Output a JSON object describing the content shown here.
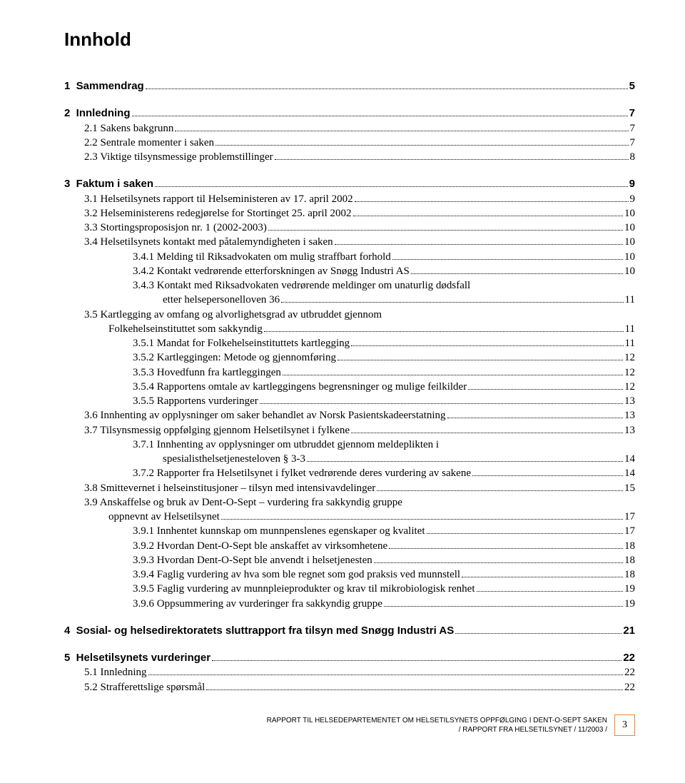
{
  "title": "Innhold",
  "toc": [
    {
      "type": "group",
      "rows": [
        {
          "label": "1  Sammendrag",
          "page": "5",
          "bold": true,
          "indent": 0
        }
      ]
    },
    {
      "type": "group",
      "rows": [
        {
          "label": "2  Innledning",
          "page": "7",
          "bold": true,
          "indent": 0
        },
        {
          "label": "2.1 Sakens bakgrunn",
          "page": "7",
          "indent": 1
        },
        {
          "label": "2.2 Sentrale momenter i saken",
          "page": "7",
          "indent": 1
        },
        {
          "label": "2.3 Viktige tilsynsmessige problemstillinger",
          "page": "8",
          "indent": 1
        }
      ]
    },
    {
      "type": "group",
      "rows": [
        {
          "label": "3  Faktum i saken",
          "page": "9",
          "bold": true,
          "indent": 0
        },
        {
          "label": "3.1 Helsetilsynets rapport til Helseministeren av 17. april 2002",
          "page": "9",
          "indent": 1
        },
        {
          "label": "3.2 Helseministerens redegjørelse for Stortinget 25. april 2002",
          "page": "10",
          "indent": 1
        },
        {
          "label": "3.3 Stortingsproposisjon nr. 1 (2002-2003)",
          "page": "10",
          "indent": 1
        },
        {
          "label": "3.4 Helsetilsynets kontakt med påtalemyndigheten i saken",
          "page": "10",
          "indent": 1
        },
        {
          "label": "3.4.1 Melding til Riksadvokaten om mulig straffbart forhold",
          "page": "10",
          "indent": 2
        },
        {
          "label": "3.4.2 Kontakt vedrørende etterforskningen av Snøgg Industri AS",
          "page": "10",
          "indent": 2
        },
        {
          "label": "3.4.3 Kontakt med Riksadvokaten vedrørende meldinger om unaturlig dødsfall",
          "indent": 2,
          "noLine": true
        },
        {
          "label": "etter helsepersonelloven 36",
          "page": "11",
          "indent": 3
        },
        {
          "label": "3.5 Kartlegging av omfang og alvorlighetsgrad av utbruddet gjennom",
          "indent": 1,
          "noLine": true
        },
        {
          "label": "Folkehelseinstituttet som sakkyndig",
          "page": "11",
          "indent": 2,
          "indentOverride": 62
        },
        {
          "label": "3.5.1 Mandat for Folkehelseinstituttets kartlegging",
          "page": "11",
          "indent": 2
        },
        {
          "label": "3.5.2 Kartleggingen: Metode og gjennomføring",
          "page": "12",
          "indent": 2
        },
        {
          "label": "3.5.3 Hovedfunn fra kartleggingen",
          "page": "12",
          "indent": 2
        },
        {
          "label": "3.5.4 Rapportens omtale av kartleggingens begrensninger og mulige feilkilder",
          "page": "12",
          "indent": 2
        },
        {
          "label": "3.5.5 Rapportens vurderinger",
          "page": "13",
          "indent": 2
        },
        {
          "label": "3.6 Innhenting av opplysninger om saker behandlet av Norsk Pasientskadeerstatning",
          "page": "13",
          "indent": 1
        },
        {
          "label": "3.7 Tilsynsmessig oppfølging gjennom Helsetilsynet i fylkene",
          "page": "13",
          "indent": 1
        },
        {
          "label": "3.7.1 Innhenting av opplysninger om utbruddet gjennom meldeplikten i",
          "indent": 2,
          "noLine": true
        },
        {
          "label": "spesialisthelsetjenesteloven § 3-3",
          "page": "14",
          "indent": 3
        },
        {
          "label": "3.7.2 Rapporter fra Helsetilsynet i fylket vedrørende deres vurdering av sakene",
          "page": "14",
          "indent": 2
        },
        {
          "label": "3.8 Smittevernet i helseinstitusjoner – tilsyn med intensivavdelinger",
          "page": "15",
          "indent": 1
        },
        {
          "label": "3.9 Anskaffelse og bruk av Dent-O-Sept – vurdering fra sakkyndig gruppe",
          "indent": 1,
          "noLine": true
        },
        {
          "label": "oppnevnt av Helsetilsynet",
          "page": "17",
          "indent": 2,
          "indentOverride": 62
        },
        {
          "label": "3.9.1 Innhentet kunnskap om munnpenslenes egenskaper og kvalitet",
          "page": "17",
          "indent": 2
        },
        {
          "label": "3.9.2 Hvordan Dent-O-Sept ble anskaffet av virksomhetene",
          "page": "18",
          "indent": 2
        },
        {
          "label": "3.9.3 Hvordan Dent-O-Sept ble anvendt i helsetjenesten",
          "page": "18",
          "indent": 2
        },
        {
          "label": "3.9.4 Faglig vurdering av hva som ble regnet som god praksis ved munnstell",
          "page": "18",
          "indent": 2
        },
        {
          "label": "3.9.5 Faglig vurdering av munnpleieprodukter og krav til mikrobiologisk renhet",
          "page": "19",
          "indent": 2
        },
        {
          "label": "3.9.6 Oppsummering av vurderinger fra sakkyndig gruppe",
          "page": "19",
          "indent": 2
        }
      ]
    },
    {
      "type": "group",
      "rows": [
        {
          "label": "4  Sosial- og helsedirektoratets sluttrapport fra tilsyn med Snøgg Industri AS",
          "page": "21",
          "bold": true,
          "indent": 0
        }
      ]
    },
    {
      "type": "group",
      "rows": [
        {
          "label": "5  Helsetilsynets vurderinger",
          "page": "22",
          "bold": true,
          "indent": 0
        },
        {
          "label": "5.1 Innledning",
          "page": "22",
          "indent": 1
        },
        {
          "label": "5.2 Strafferettslige spørsmål",
          "page": "22",
          "indent": 1
        }
      ]
    }
  ],
  "footer": {
    "line1": "RAPPORT TIL HELSEDEPARTEMENTET OM HELSETILSYNETS OPPFØLGING I DENT-O-SEPT SAKEN",
    "line2": "/ RAPPORT FRA HELSETILSYNET / 11/2003 /",
    "pageNumber": "3",
    "borderColor": "#f58220"
  },
  "style": {
    "indentPx": [
      0,
      28,
      96,
      138
    ]
  }
}
